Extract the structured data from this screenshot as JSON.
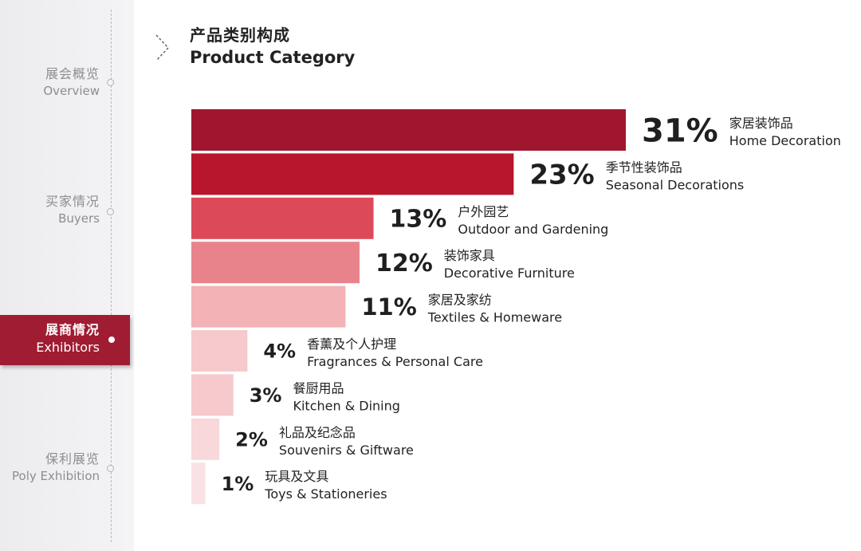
{
  "nav": {
    "items": [
      {
        "zh": "展会概览",
        "en": "Overview"
      },
      {
        "zh": "买家情况",
        "en": "Buyers"
      },
      {
        "zh": "展商情况",
        "en": "Exhibitors"
      },
      {
        "zh": "保利展览",
        "en": "Poly Exhibition"
      }
    ],
    "active_index": 2,
    "accent_color": "#a01c32"
  },
  "header": {
    "title_zh": "产品类别构成",
    "title_en": "Product Category",
    "icon": "chevron-right-icon"
  },
  "chart_data": {
    "type": "bar",
    "orientation": "horizontal",
    "values": [
      31,
      23,
      13,
      12,
      11,
      4,
      3,
      2,
      1
    ],
    "value_labels": [
      "31%",
      "23%",
      "13%",
      "12%",
      "11%",
      "4%",
      "3%",
      "2%",
      "1%"
    ],
    "categories_zh": [
      "家居装饰品",
      "季节性装饰品",
      "户外园艺",
      "装饰家具",
      "家居及家纺",
      "香薰及个人护理",
      "餐厨用品",
      "礼品及纪念品",
      "玩具及文具"
    ],
    "categories_en": [
      "Home Decoration",
      "Seasonal Decorations",
      "Outdoor and Gardening",
      "Decorative Furniture",
      "Textiles & Homeware",
      "Fragrances & Personal Care",
      "Kitchen & Dining",
      "Souvenirs & Giftware",
      "Toys & Stationeries"
    ],
    "colors": [
      "#a0162e",
      "#b8162d",
      "#dc4a5a",
      "#e8838c",
      "#f2b2b6",
      "#f6c9cc",
      "#f6c9cc",
      "#f8d8da",
      "#fae2e4"
    ]
  }
}
